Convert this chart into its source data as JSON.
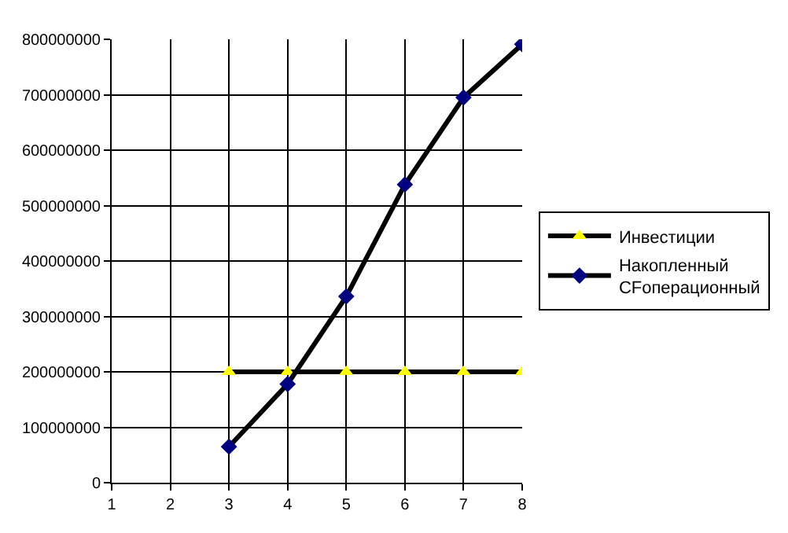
{
  "chart_data": {
    "type": "line",
    "x": [
      3,
      4,
      5,
      6,
      7,
      8
    ],
    "series": [
      {
        "name": "Инвестиции",
        "color": "#000000",
        "colors": [
          "#ffff00",
          "#ffff00",
          "#ffff00",
          "#ffff00",
          "#ffff00",
          "#ffff00"
        ],
        "marker": "triangle",
        "values": [
          200000000,
          200000000,
          200000000,
          200000000,
          200000000,
          200000000
        ]
      },
      {
        "name": "Накопленный CFоперационный",
        "color": "#000000",
        "colors": [
          "#000080",
          "#000080",
          "#000080",
          "#000080",
          "#000080",
          "#000080"
        ],
        "marker": "diamond",
        "values": [
          65000000,
          178000000,
          336000000,
          538000000,
          695000000,
          791000000
        ]
      }
    ],
    "xlim": [
      1,
      8
    ],
    "xticks": [
      1,
      2,
      3,
      4,
      5,
      6,
      7,
      8
    ],
    "ylim": [
      0,
      800000000
    ],
    "yticks": [
      0,
      100000000,
      200000000,
      300000000,
      400000000,
      500000000,
      600000000,
      700000000,
      800000000
    ],
    "grid": true,
    "legend": "right",
    "line_style": "solid"
  }
}
